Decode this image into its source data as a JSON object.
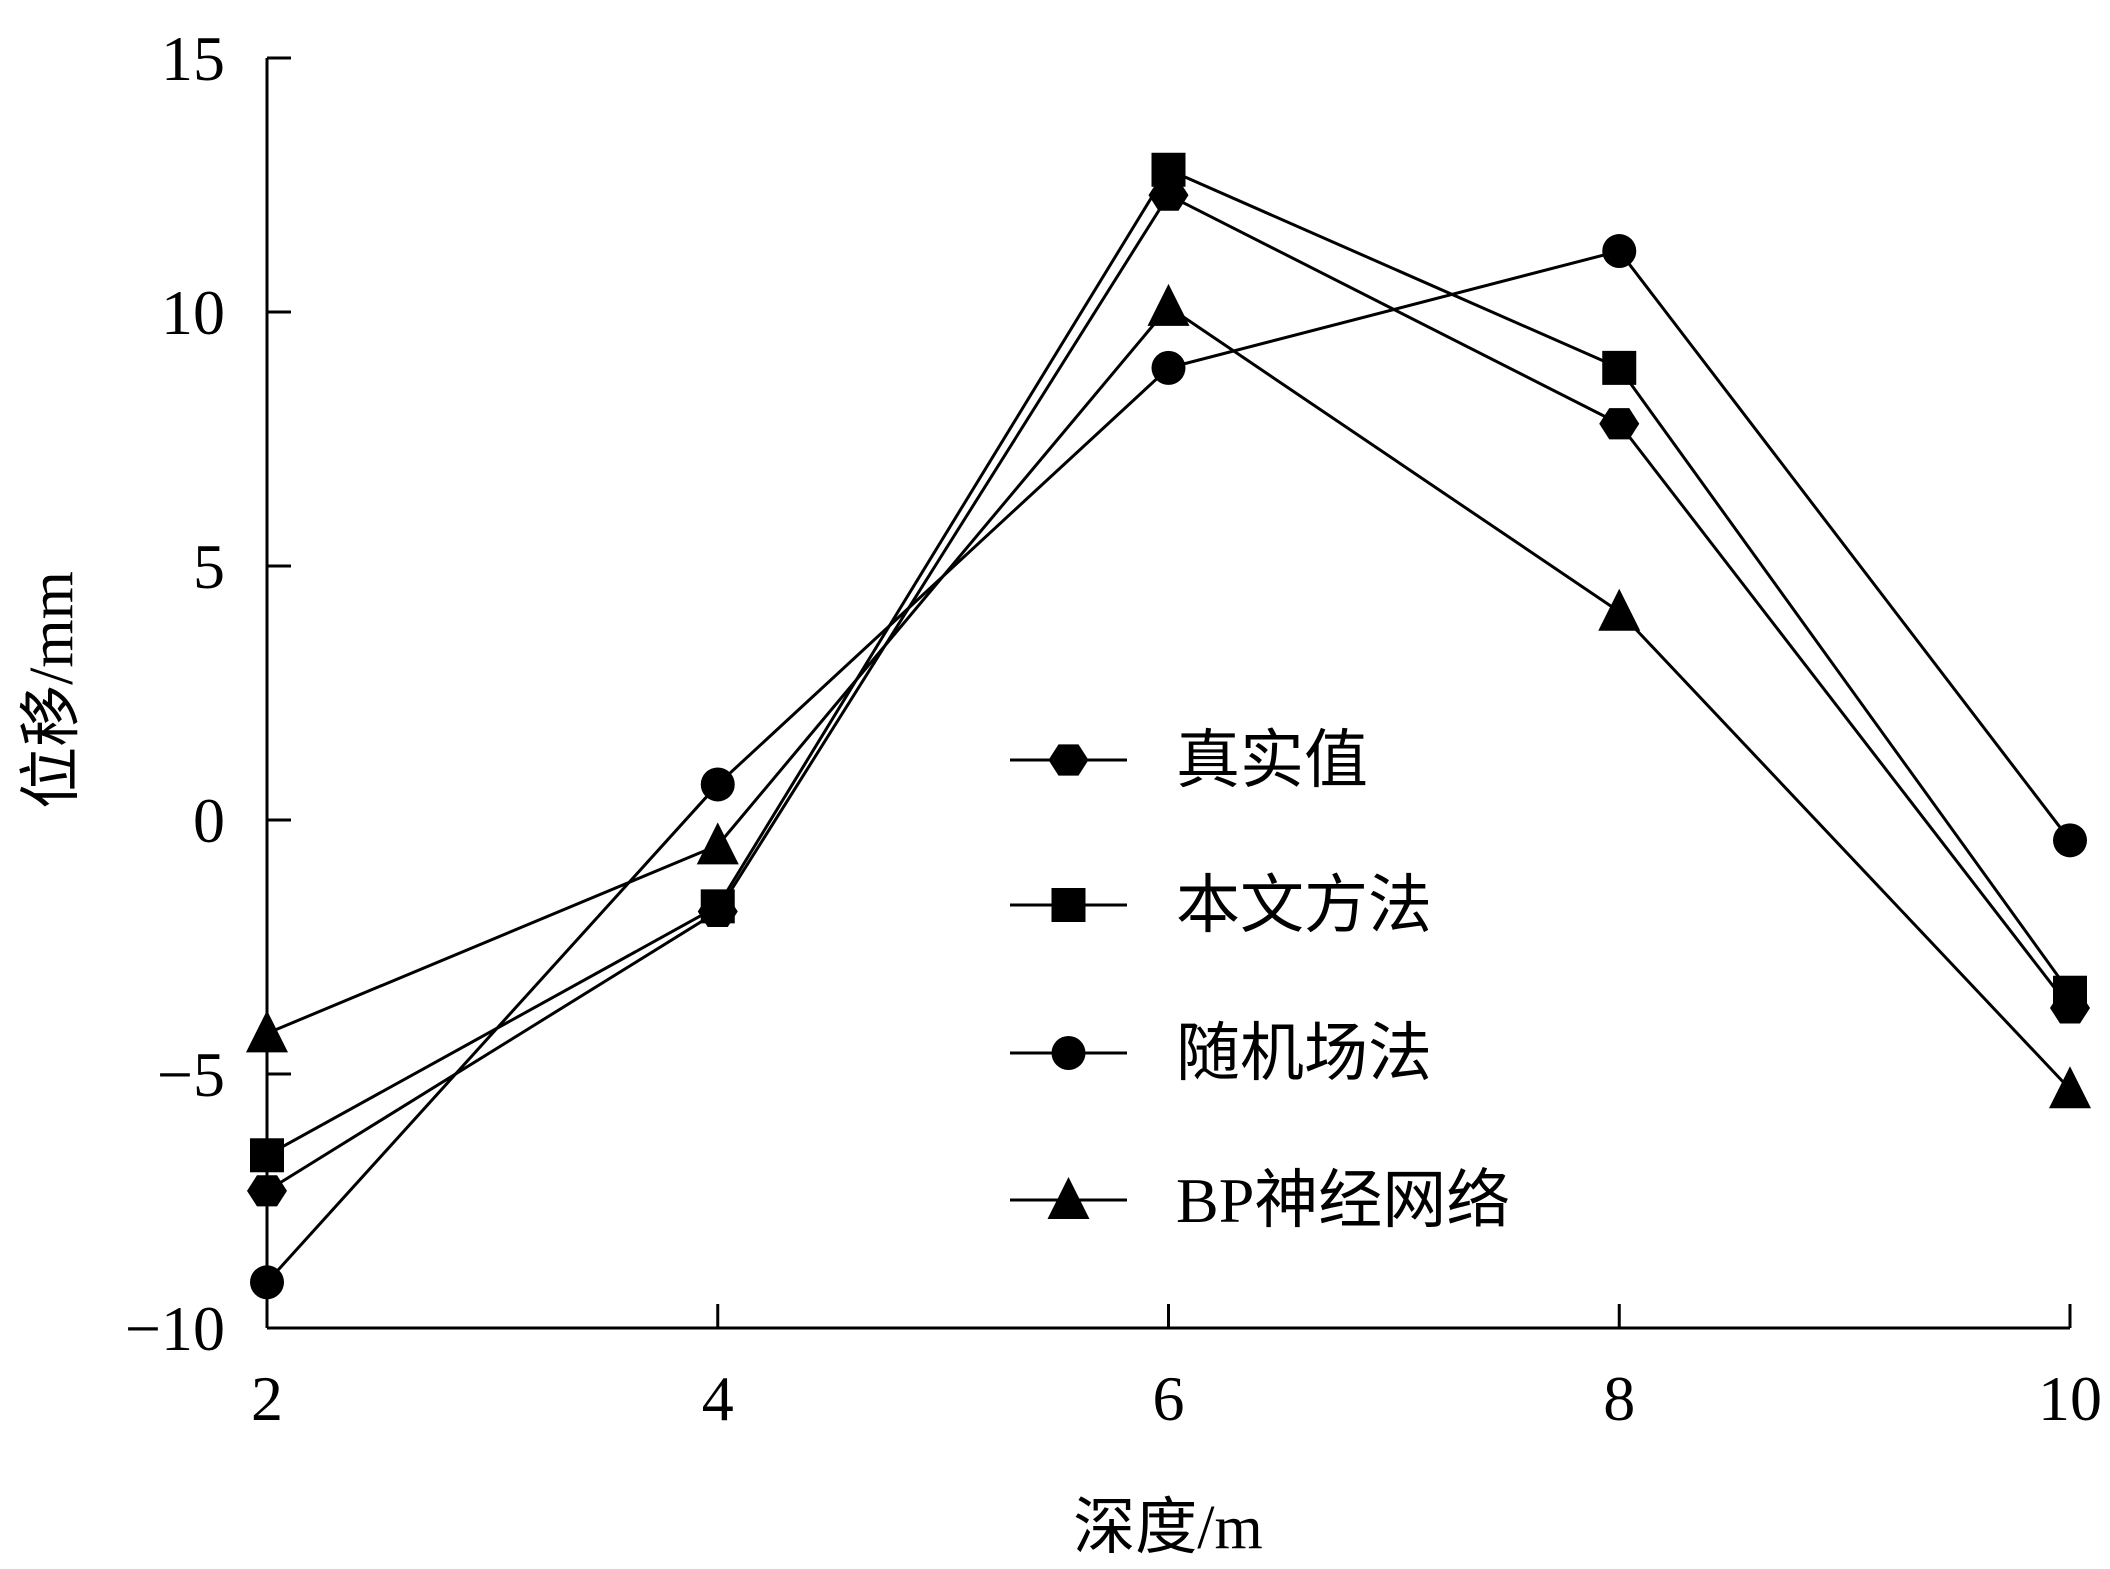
{
  "chart_data": {
    "type": "line",
    "xlabel": "深度/m",
    "ylabel": "位移/mm",
    "xlim": [
      2,
      10
    ],
    "ylim": [
      -10,
      15
    ],
    "xticks": [
      2,
      4,
      6,
      8,
      10
    ],
    "yticks": [
      15,
      10,
      5,
      0,
      -5,
      -10
    ],
    "ytick_labels": [
      "15",
      "10",
      "5",
      "0",
      "−5",
      "−10"
    ],
    "grid": false,
    "legend_position": "center-right",
    "series": [
      {
        "name": "真实值",
        "marker": "hexagon",
        "x": [
          2,
          4,
          6,
          8,
          10
        ],
        "values": [
          -7.3,
          -1.8,
          12.3,
          7.8,
          -3.7
        ]
      },
      {
        "name": "本文方法",
        "marker": "square",
        "x": [
          2,
          4,
          6,
          8,
          10
        ],
        "values": [
          -6.6,
          -1.7,
          12.8,
          8.9,
          -3.4
        ]
      },
      {
        "name": "随机场法",
        "marker": "circle",
        "x": [
          2,
          4,
          6,
          8,
          10
        ],
        "values": [
          -9.1,
          0.7,
          8.9,
          11.2,
          -0.4
        ]
      },
      {
        "name": "BP神经网络",
        "marker": "triangle",
        "x": [
          2,
          4,
          6,
          8,
          10
        ],
        "values": [
          -4.2,
          -0.5,
          10.1,
          4.1,
          -5.3
        ]
      }
    ]
  }
}
